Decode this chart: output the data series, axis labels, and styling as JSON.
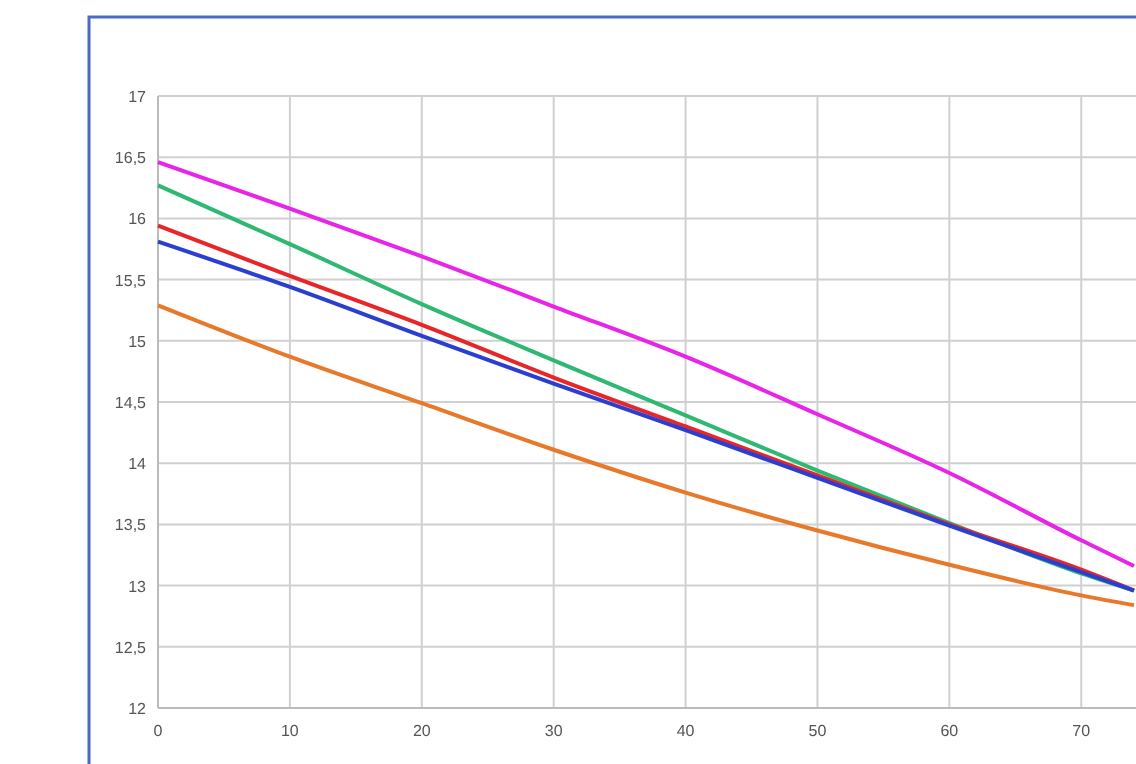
{
  "chart_data": {
    "type": "line",
    "x": [
      0,
      10,
      20,
      30,
      40,
      50,
      60,
      70,
      74
    ],
    "series": [
      {
        "color": "#e824e8",
        "values": [
          16.46,
          16.08,
          15.69,
          15.28,
          14.87,
          14.4,
          13.92,
          13.37,
          13.16
        ]
      },
      {
        "color": "#2eb872",
        "values": [
          16.27,
          15.79,
          15.3,
          14.84,
          14.39,
          13.94,
          13.51,
          13.1,
          12.96
        ]
      },
      {
        "color": "#e8262a",
        "values": [
          15.94,
          15.53,
          15.13,
          14.7,
          14.3,
          13.9,
          13.5,
          13.13,
          12.96
        ]
      },
      {
        "color": "#2a3fd0",
        "values": [
          15.81,
          15.44,
          15.04,
          14.65,
          14.27,
          13.88,
          13.49,
          13.11,
          12.96
        ]
      },
      {
        "color": "#e8782a",
        "values": [
          15.29,
          14.87,
          14.49,
          14.11,
          13.76,
          13.45,
          13.17,
          12.92,
          12.84
        ]
      }
    ],
    "xlim": [
      0,
      74
    ],
    "xticks": [
      0,
      10,
      20,
      30,
      40,
      50,
      60,
      70
    ],
    "ylim": [
      12,
      17
    ],
    "yticks": [
      12,
      {
        "value": 12.5,
        "label": "12,5"
      },
      13,
      {
        "value": 13.5,
        "label": "13,5"
      },
      14,
      {
        "value": 14.5,
        "label": "14,5"
      },
      15,
      {
        "value": 15.5,
        "label": "15,5"
      },
      16,
      {
        "value": 16.5,
        "label": "16,5"
      },
      17
    ],
    "grid": true,
    "marker": "none",
    "line_style": "solid"
  }
}
